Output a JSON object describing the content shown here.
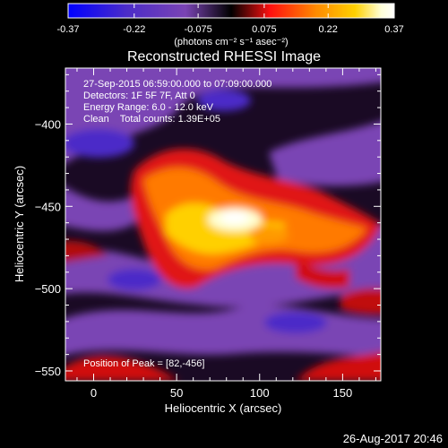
{
  "chart_data": {
    "type": "heatmap",
    "title": "Reconstructed RHESSI Image",
    "colorbar": {
      "ticks": [
        "-0.37",
        "-0.22",
        "-0.075",
        "0.075",
        "0.22",
        "0.37"
      ],
      "unit_label": "(photons cm⁻² s⁻¹ asec⁻²)",
      "range": [
        -0.37,
        0.37
      ],
      "colors": [
        "#0000ff",
        "#4b2cc8",
        "#7a44b4",
        "#000000",
        "#ff1010",
        "#ff8a00",
        "#ffd000",
        "#ffffd8",
        "#ffffff"
      ]
    },
    "xlabel": "Heliocentric X (arcsec)",
    "ylabel": "Heliocentric Y (arcsec)",
    "xlim": [
      -17,
      173
    ],
    "ylim": [
      -556,
      -366
    ],
    "xticks": [
      0,
      50,
      100,
      150
    ],
    "yticks": [
      -400,
      -450,
      -500,
      -550
    ],
    "annotations": [
      "27-Sep-2015 06:59:00.000 to 07:09:00.000",
      "Detectors: 1F 5F 7F, Att 0",
      "Energy Range: 6.0 - 12.0 keV",
      "Clean    Total counts: 1.39E+05"
    ],
    "peak_label": "Position of Peak = [82,-456]",
    "peak": [
      82,
      -456
    ],
    "timestamp": "26-Aug-2017 20:46"
  }
}
